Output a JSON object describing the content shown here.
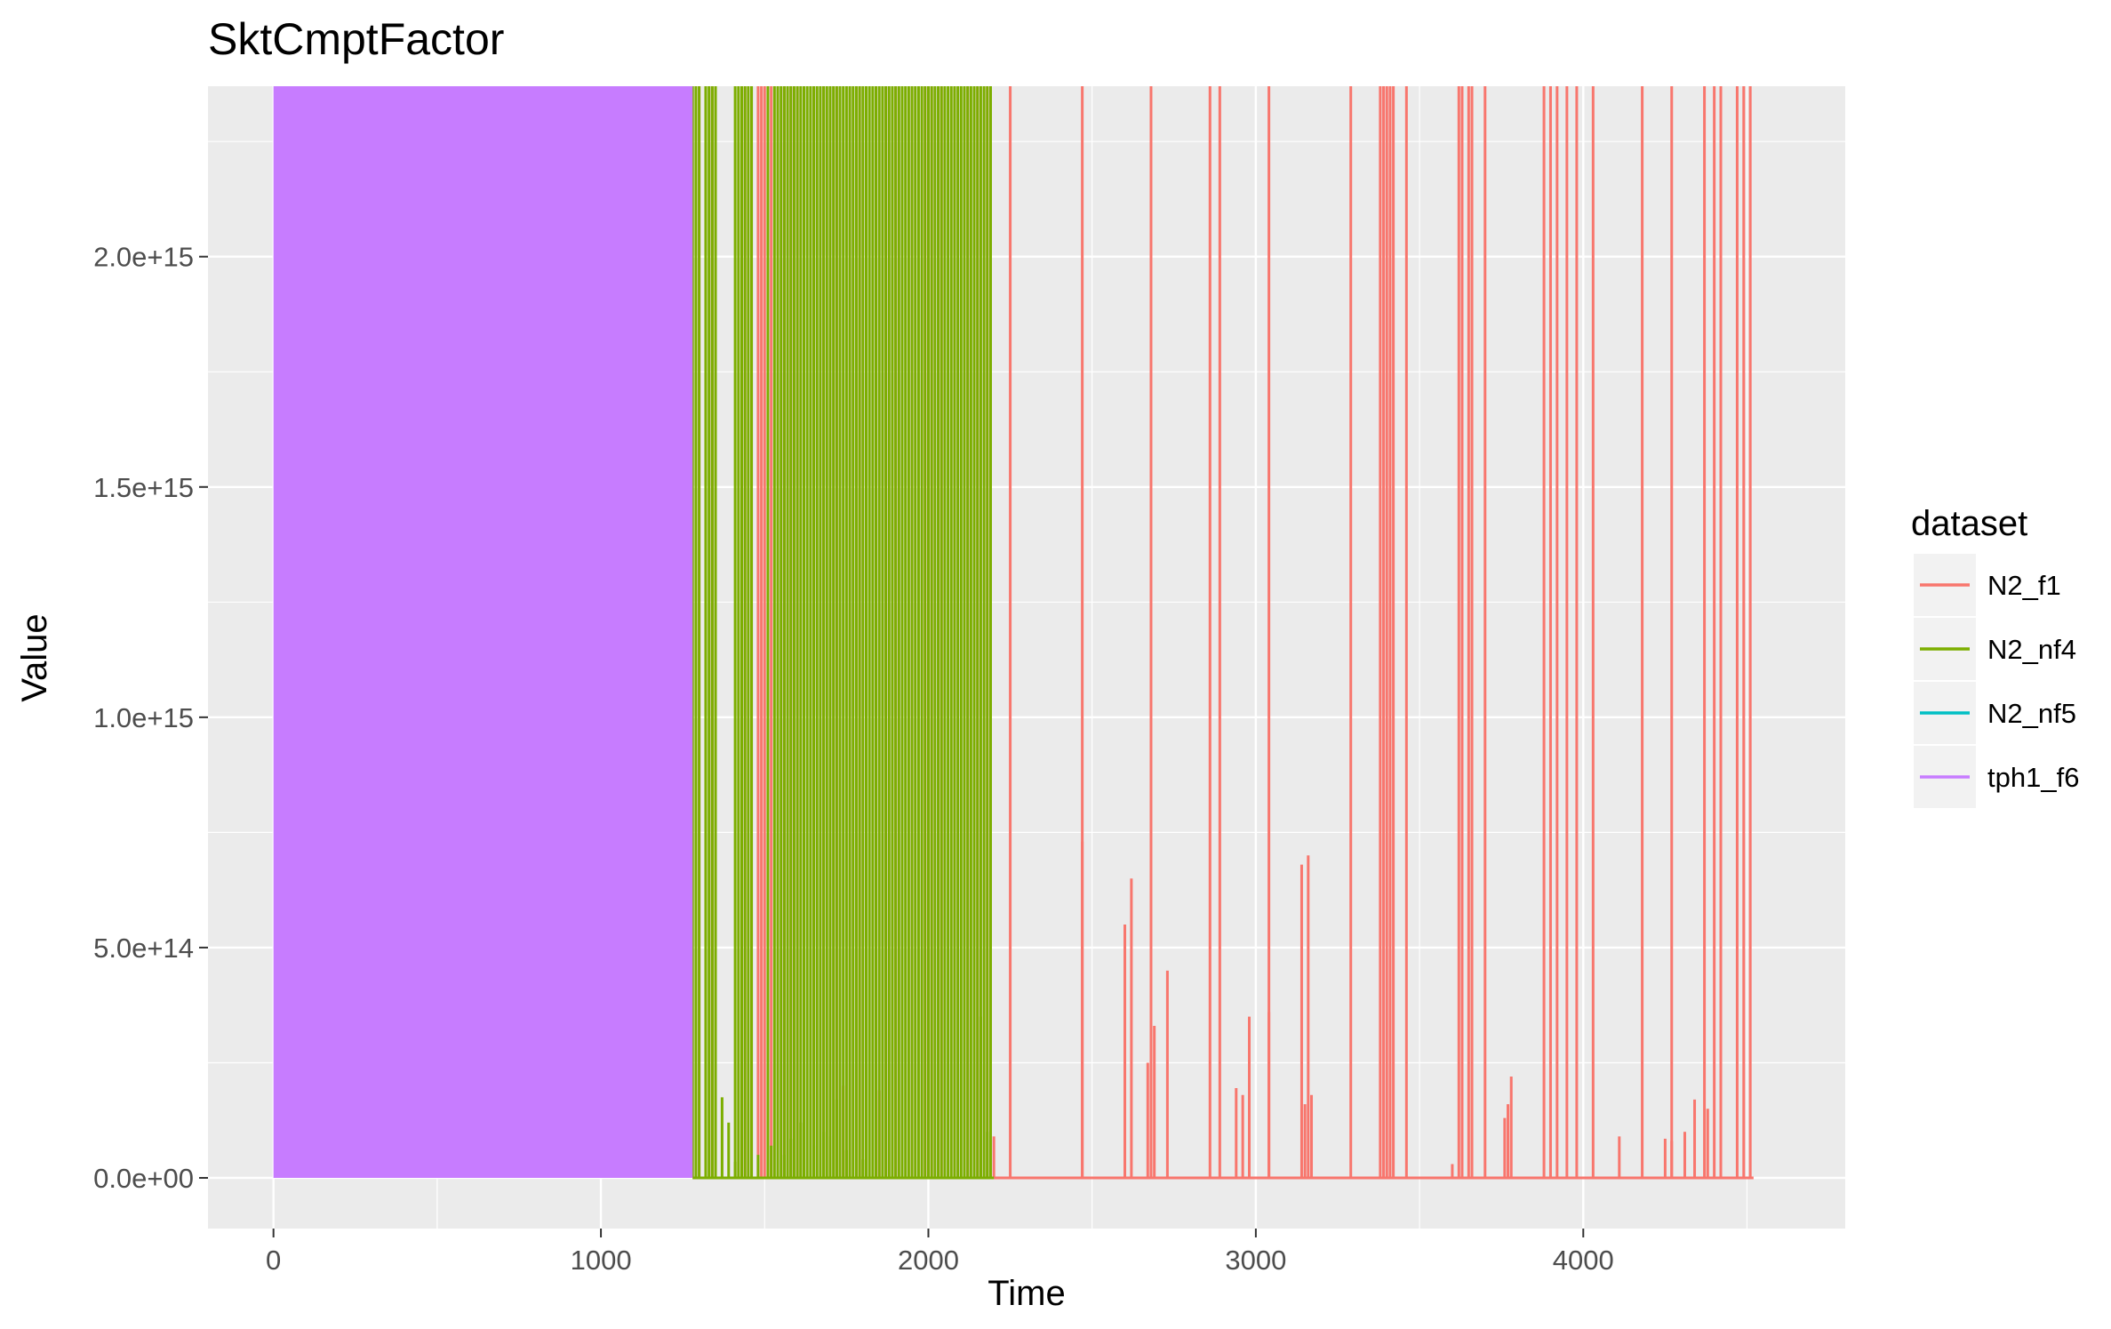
{
  "chart_data": {
    "type": "line",
    "title": "SktCmptFactor",
    "xlabel": "Time",
    "ylabel": "Value",
    "xlim": [
      -200,
      4800
    ],
    "ylim": [
      -110000000000000.0,
      2370000000000000.0
    ],
    "x_ticks": [
      0,
      1000,
      2000,
      3000,
      4000
    ],
    "x_tick_labels": [
      "0",
      "1000",
      "2000",
      "3000",
      "4000"
    ],
    "y_ticks": [
      0,
      500000000000000.0,
      1000000000000000.0,
      1500000000000000.0,
      2000000000000000.0
    ],
    "y_tick_labels": [
      "0.0e+00",
      "5.0e+14",
      "1.0e+15",
      "1.5e+15",
      "2.0e+15"
    ],
    "grid": true,
    "legend": {
      "title": "dataset",
      "position": "right"
    },
    "series": [
      {
        "name": "N2_f1",
        "color": "#F8766D",
        "x_range": [
          1280,
          4520
        ],
        "baseline": 0,
        "spikes_to_top": [
          1300,
          1340,
          1440,
          1460,
          1480,
          1490,
          1500,
          1520,
          1560,
          1580,
          1600,
          1620,
          1650,
          1680,
          1700,
          1720,
          1760,
          1790,
          1840,
          1870,
          1900,
          1950,
          1990,
          2010,
          2040,
          2080,
          2120,
          2150,
          2180,
          2250,
          2470,
          2680,
          2860,
          2890,
          3040,
          3290,
          3380,
          3390,
          3400,
          3410,
          3420,
          3460,
          3620,
          3630,
          3650,
          3660,
          3700,
          3880,
          3900,
          3920,
          3950,
          3980,
          4030,
          4180,
          4270,
          4370,
          4400,
          4420,
          4470,
          4490,
          4510
        ],
        "peaks": [
          [
            1740,
            200000000000000.0
          ],
          [
            1850,
            190000000000000.0
          ],
          [
            2200,
            90000000000000.0
          ],
          [
            2470,
            730000000000000.0
          ],
          [
            2600,
            550000000000000.0
          ],
          [
            2620,
            650000000000000.0
          ],
          [
            2670,
            250000000000000.0
          ],
          [
            2690,
            330000000000000.0
          ],
          [
            2730,
            450000000000000.0
          ],
          [
            2940,
            195000000000000.0
          ],
          [
            2960,
            180000000000000.0
          ],
          [
            2980,
            350000000000000.0
          ],
          [
            3040,
            360000000000000.0
          ],
          [
            3140,
            680000000000000.0
          ],
          [
            3160,
            700000000000000.0
          ],
          [
            3150,
            160000000000000.0
          ],
          [
            3170,
            180000000000000.0
          ],
          [
            3600,
            30000000000000.0
          ],
          [
            3760,
            130000000000000.0
          ],
          [
            3770,
            160000000000000.0
          ],
          [
            3780,
            220000000000000.0
          ],
          [
            4110,
            90000000000000.0
          ],
          [
            4250,
            85000000000000.0
          ],
          [
            4270,
            80000000000000.0
          ],
          [
            4310,
            100000000000000.0
          ],
          [
            4340,
            170000000000000.0
          ],
          [
            4380,
            150000000000000.0
          ]
        ]
      },
      {
        "name": "N2_nf4",
        "color": "#7CAE00",
        "x_range": [
          1280,
          2200
        ],
        "baseline": 0,
        "spikes_to_top": [
          1280,
          1290,
          1300,
          1320,
          1330,
          1340,
          1350,
          1410,
          1420,
          1430,
          1440,
          1450,
          1460,
          1510,
          1530,
          1540,
          1550,
          1560,
          1570,
          1580,
          1590,
          1600,
          1610,
          1620,
          1630,
          1640,
          1650,
          1660,
          1670,
          1680,
          1690,
          1700,
          1710,
          1720,
          1730,
          1740,
          1750,
          1760,
          1770,
          1780,
          1790,
          1800,
          1810,
          1820,
          1830,
          1840,
          1850,
          1860,
          1870,
          1880,
          1890,
          1900,
          1910,
          1920,
          1930,
          1940,
          1950,
          1960,
          1970,
          1980,
          1990,
          2000,
          2010,
          2020,
          2030,
          2040,
          2050,
          2060,
          2070,
          2080,
          2090,
          2100,
          2110,
          2120,
          2130,
          2140,
          2150,
          2160,
          2170,
          2180,
          2190
        ],
        "peaks": [
          [
            1370,
            175000000000000.0
          ],
          [
            1390,
            120000000000000.0
          ],
          [
            1410,
            35000000000000.0
          ],
          [
            1430,
            90000000000000.0
          ],
          [
            1480,
            50000000000000.0
          ],
          [
            1520,
            70000000000000.0
          ],
          [
            1560,
            50000000000000.0
          ],
          [
            1580,
            85000000000000.0
          ],
          [
            1610,
            120000000000000.0
          ],
          [
            1650,
            70000000000000.0
          ],
          [
            1680,
            100000000000000.0
          ],
          [
            1700,
            90000000000000.0
          ],
          [
            1720,
            170000000000000.0
          ],
          [
            1750,
            60000000000000.0
          ],
          [
            1800,
            40000000000000.0
          ],
          [
            2160,
            350000000000000.0
          ],
          [
            2180,
            100000000000000.0
          ]
        ]
      },
      {
        "name": "N2_nf5",
        "color": "#00BFC4",
        "x_range": [],
        "baseline": 0,
        "spikes_to_top": [],
        "peaks": []
      },
      {
        "name": "tph1_f6",
        "color": "#C77CFF",
        "x_range": [
          0,
          1280
        ],
        "fill_to_top": true,
        "baseline": 0,
        "spikes_to_top": [],
        "peaks": []
      }
    ]
  }
}
